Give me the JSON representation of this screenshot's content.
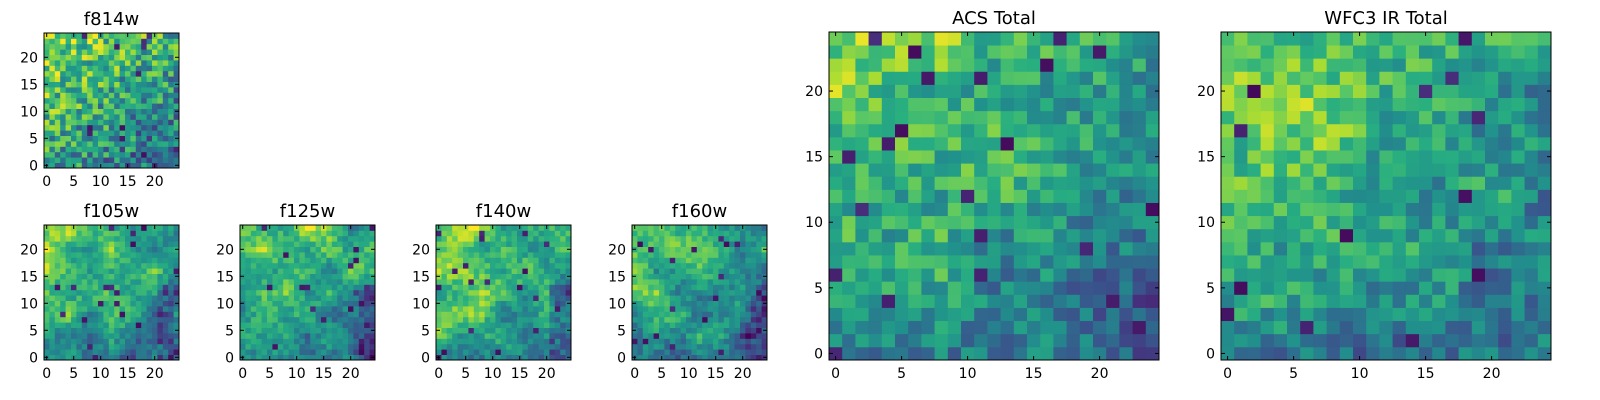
{
  "figure": {
    "colormap": "viridis",
    "background": "#ffffff"
  },
  "chart_data": [
    {
      "type": "heatmap",
      "title": "f814w",
      "xlim": [
        0,
        25
      ],
      "ylim": [
        0,
        25
      ],
      "xticks": [
        0,
        5,
        10,
        15,
        20
      ],
      "yticks": [
        0,
        5,
        10,
        15,
        20
      ],
      "seed": 11,
      "pattern": "noisy",
      "grid": false
    },
    {
      "type": "heatmap",
      "title": "f105w",
      "xlim": [
        0,
        25
      ],
      "ylim": [
        0,
        25
      ],
      "xticks": [
        0,
        5,
        10,
        15,
        20
      ],
      "yticks": [
        0,
        5,
        10,
        15,
        20
      ],
      "seed": 23,
      "pattern": "smooth",
      "grid": false
    },
    {
      "type": "heatmap",
      "title": "f125w",
      "xlim": [
        0,
        25
      ],
      "ylim": [
        0,
        25
      ],
      "xticks": [
        0,
        5,
        10,
        15,
        20
      ],
      "yticks": [
        0,
        5,
        10,
        15,
        20
      ],
      "seed": 37,
      "pattern": "smooth",
      "grid": false
    },
    {
      "type": "heatmap",
      "title": "f140w",
      "xlim": [
        0,
        25
      ],
      "ylim": [
        0,
        25
      ],
      "xticks": [
        0,
        5,
        10,
        15,
        20
      ],
      "yticks": [
        0,
        5,
        10,
        15,
        20
      ],
      "seed": 41,
      "pattern": "smooth",
      "grid": false
    },
    {
      "type": "heatmap",
      "title": "f160w",
      "xlim": [
        0,
        25
      ],
      "ylim": [
        0,
        25
      ],
      "xticks": [
        0,
        5,
        10,
        15,
        20
      ],
      "yticks": [
        0,
        5,
        10,
        15,
        20
      ],
      "seed": 53,
      "pattern": "smooth",
      "grid": false
    },
    {
      "type": "heatmap",
      "title": "ACS Total",
      "xlim": [
        0,
        25
      ],
      "ylim": [
        0,
        25
      ],
      "xticks": [
        0,
        5,
        10,
        15,
        20
      ],
      "yticks": [
        0,
        5,
        10,
        15,
        20
      ],
      "seed": 67,
      "pattern": "blocky",
      "grid": false
    },
    {
      "type": "heatmap",
      "title": "WFC3 IR Total",
      "xlim": [
        0,
        25
      ],
      "ylim": [
        0,
        25
      ],
      "xticks": [
        0,
        5,
        10,
        15,
        20
      ],
      "yticks": [
        0,
        5,
        10,
        15,
        20
      ],
      "seed": 79,
      "pattern": "blocky",
      "grid": false
    }
  ]
}
